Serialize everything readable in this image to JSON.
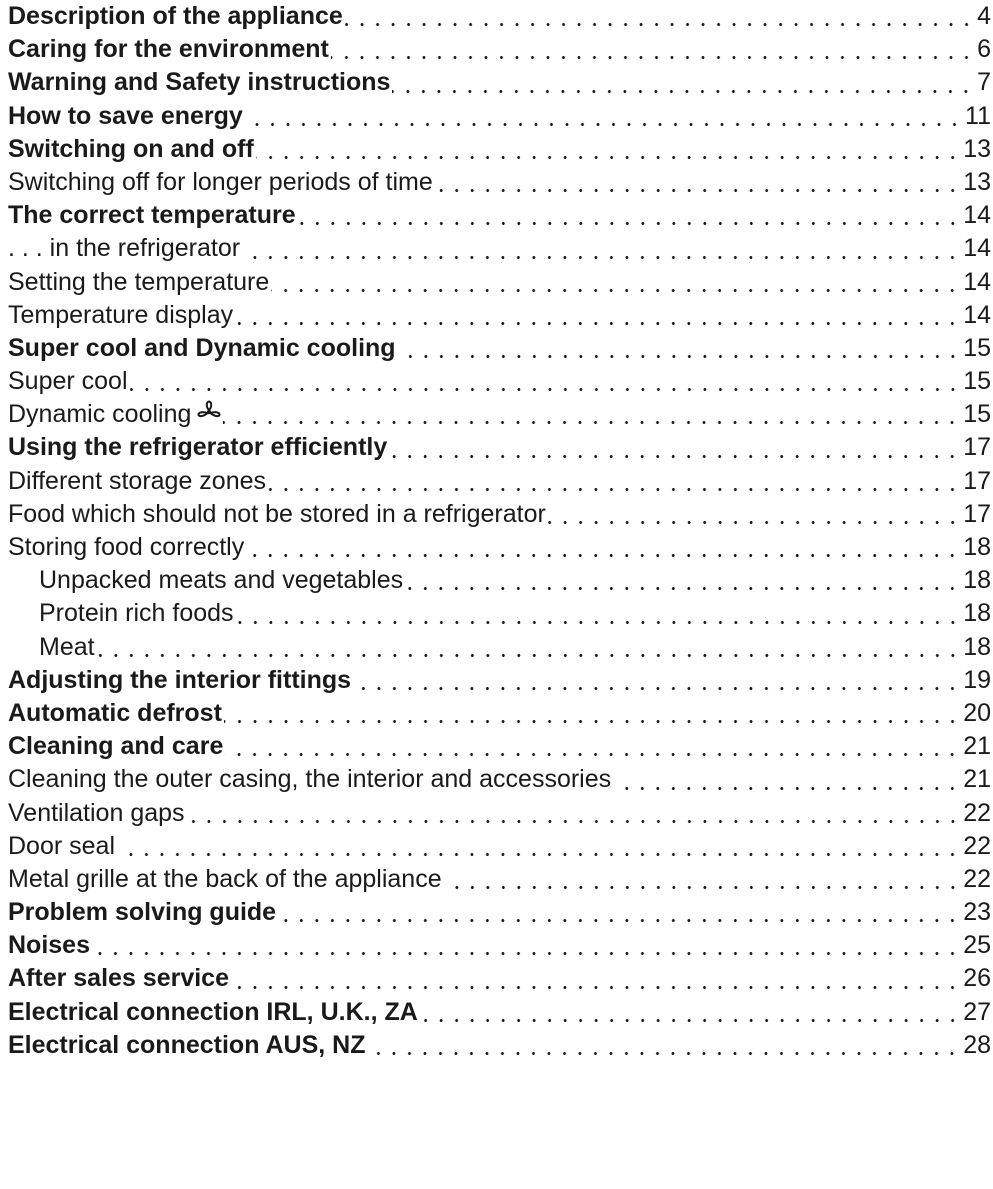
{
  "toc": {
    "entries": [
      {
        "title": "Description of the appliance",
        "page": "4",
        "style": "major",
        "level": 1
      },
      {
        "title": "Caring for the environment",
        "page": "6",
        "style": "major",
        "level": 1
      },
      {
        "title": "Warning and Safety instructions",
        "page": "7",
        "style": "major",
        "level": 1
      },
      {
        "title": "How to save energy",
        "page": "11",
        "style": "major",
        "level": 1
      },
      {
        "title": "Switching on and off",
        "page": "13",
        "style": "major",
        "level": 1
      },
      {
        "title": "Switching off for longer periods of time",
        "page": "13",
        "style": "minor",
        "level": 1
      },
      {
        "title": "The correct temperature",
        "page": "14",
        "style": "major",
        "level": 1
      },
      {
        "title": ". . . in the refrigerator",
        "page": "14",
        "style": "minor",
        "level": 1
      },
      {
        "title": "Setting the temperature",
        "page": "14",
        "style": "minor",
        "level": 1
      },
      {
        "title": "Temperature display",
        "page": "14",
        "style": "minor",
        "level": 1
      },
      {
        "title": "Super cool and Dynamic cooling",
        "page": "15",
        "style": "major",
        "level": 1
      },
      {
        "title": "Super cool",
        "page": "15",
        "style": "minor",
        "level": 1
      },
      {
        "title": "Dynamic cooling",
        "page": "15",
        "style": "minor",
        "level": 1,
        "icon": "fan-icon"
      },
      {
        "title": "Using the refrigerator efficiently",
        "page": "17",
        "style": "major",
        "level": 1
      },
      {
        "title": "Different storage zones",
        "page": "17",
        "style": "minor",
        "level": 1
      },
      {
        "title": "Food which should not be stored in a refrigerator",
        "page": "17",
        "style": "minor",
        "level": 1
      },
      {
        "title": "Storing food correctly",
        "page": "18",
        "style": "minor",
        "level": 1
      },
      {
        "title": "Unpacked meats and vegetables",
        "page": "18",
        "style": "minor",
        "level": 2
      },
      {
        "title": "Protein rich foods",
        "page": "18",
        "style": "minor",
        "level": 2
      },
      {
        "title": "Meat",
        "page": "18",
        "style": "minor",
        "level": 2
      },
      {
        "title": "Adjusting the interior fittings",
        "page": "19",
        "style": "major",
        "level": 1
      },
      {
        "title": "Automatic defrost",
        "page": "20",
        "style": "major",
        "level": 1
      },
      {
        "title": "Cleaning and care",
        "page": "21",
        "style": "major",
        "level": 1
      },
      {
        "title": "Cleaning the outer casing, the interior and accessories",
        "page": "21",
        "style": "minor",
        "level": 1
      },
      {
        "title": "Ventilation gaps",
        "page": "22",
        "style": "minor",
        "level": 1
      },
      {
        "title": "Door seal",
        "page": "22",
        "style": "minor",
        "level": 1
      },
      {
        "title": "Metal grille at the back of the appliance",
        "page": "22",
        "style": "minor",
        "level": 1
      },
      {
        "title": "Problem solving guide",
        "page": "23",
        "style": "major",
        "level": 1
      },
      {
        "title": "Noises",
        "page": "25",
        "style": "major",
        "level": 1
      },
      {
        "title": "After sales service",
        "page": "26",
        "style": "major",
        "level": 1
      },
      {
        "title": "Electrical connection IRL, U.K., ZA",
        "page": "27",
        "style": "major",
        "level": 1
      },
      {
        "title": "Electrical connection AUS, NZ",
        "page": "28",
        "style": "major",
        "level": 1
      }
    ]
  }
}
